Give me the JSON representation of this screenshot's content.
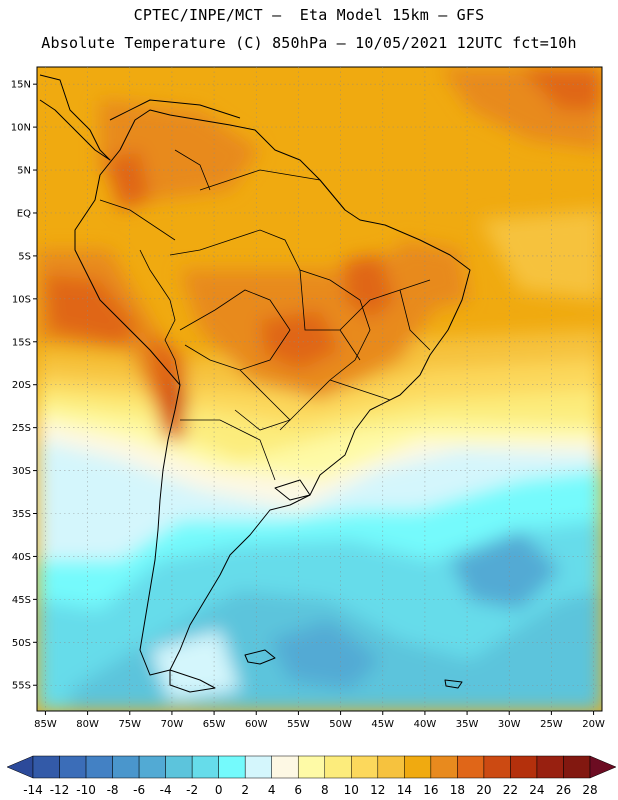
{
  "header": {
    "line1": "CPTEC/INPE/MCT –  Eta Model 15km – GFS",
    "line2": "Absolute Temperature (C) 850hPa – 10/05/2021 12UTC fct=10h"
  },
  "map": {
    "extent": {
      "lon_min": -86,
      "lon_max": -19,
      "lat_min": -58,
      "lat_max": 17
    },
    "lat_labels": [
      {
        "lat": 15,
        "text": "15N"
      },
      {
        "lat": 10,
        "text": "10N"
      },
      {
        "lat": 5,
        "text": "5N"
      },
      {
        "lat": 0,
        "text": "EQ"
      },
      {
        "lat": -5,
        "text": "5S"
      },
      {
        "lat": -10,
        "text": "10S"
      },
      {
        "lat": -15,
        "text": "15S"
      },
      {
        "lat": -20,
        "text": "20S"
      },
      {
        "lat": -25,
        "text": "25S"
      },
      {
        "lat": -30,
        "text": "30S"
      },
      {
        "lat": -35,
        "text": "35S"
      },
      {
        "lat": -40,
        "text": "40S"
      },
      {
        "lat": -45,
        "text": "45S"
      },
      {
        "lat": -50,
        "text": "50S"
      },
      {
        "lat": -55,
        "text": "55S"
      }
    ],
    "lon_labels": [
      {
        "lon": -85,
        "text": "85W"
      },
      {
        "lon": -80,
        "text": "80W"
      },
      {
        "lon": -75,
        "text": "75W"
      },
      {
        "lon": -70,
        "text": "70W"
      },
      {
        "lon": -65,
        "text": "65W"
      },
      {
        "lon": -60,
        "text": "60W"
      },
      {
        "lon": -55,
        "text": "55W"
      },
      {
        "lon": -50,
        "text": "50W"
      },
      {
        "lon": -45,
        "text": "45W"
      },
      {
        "lon": -40,
        "text": "40W"
      },
      {
        "lon": -35,
        "text": "35W"
      },
      {
        "lon": -30,
        "text": "30W"
      },
      {
        "lon": -25,
        "text": "25W"
      },
      {
        "lon": -20,
        "text": "20W"
      }
    ]
  },
  "colorbar": {
    "labels": [
      "-14",
      "-12",
      "-10",
      "-8",
      "-6",
      "-4",
      "-2",
      "0",
      "2",
      "4",
      "6",
      "8",
      "10",
      "12",
      "14",
      "16",
      "18",
      "20",
      "22",
      "24",
      "26",
      "28"
    ],
    "colors": [
      "#2c4a9a",
      "#335aa8",
      "#3b6db8",
      "#4381c4",
      "#4a96cc",
      "#52aad4",
      "#5cc4dc",
      "#66dcea",
      "#74fafc",
      "#d4f6fc",
      "#fdf8e4",
      "#fefaa6",
      "#fcec7c",
      "#fcd85c",
      "#f6c23e",
      "#f0aa10",
      "#e88a1e",
      "#e06618",
      "#cc4a12",
      "#b4300c",
      "#982010",
      "#821810",
      "#6c0c22"
    ]
  },
  "field": {
    "colors": {
      "t2": "#74fafc",
      "t4": "#d4f6fc",
      "t6": "#fdf8e4",
      "t8": "#fefaa6",
      "t10": "#fcec7c",
      "t12": "#fcd85c",
      "t14": "#f6c23e",
      "t16": "#f0aa10",
      "t18": "#e88a1e",
      "t20": "#e06618",
      "t22": "#cc4a12",
      "t0": "#66dcea",
      "tm2": "#5cc4dc",
      "tm4": "#52aad4"
    }
  }
}
